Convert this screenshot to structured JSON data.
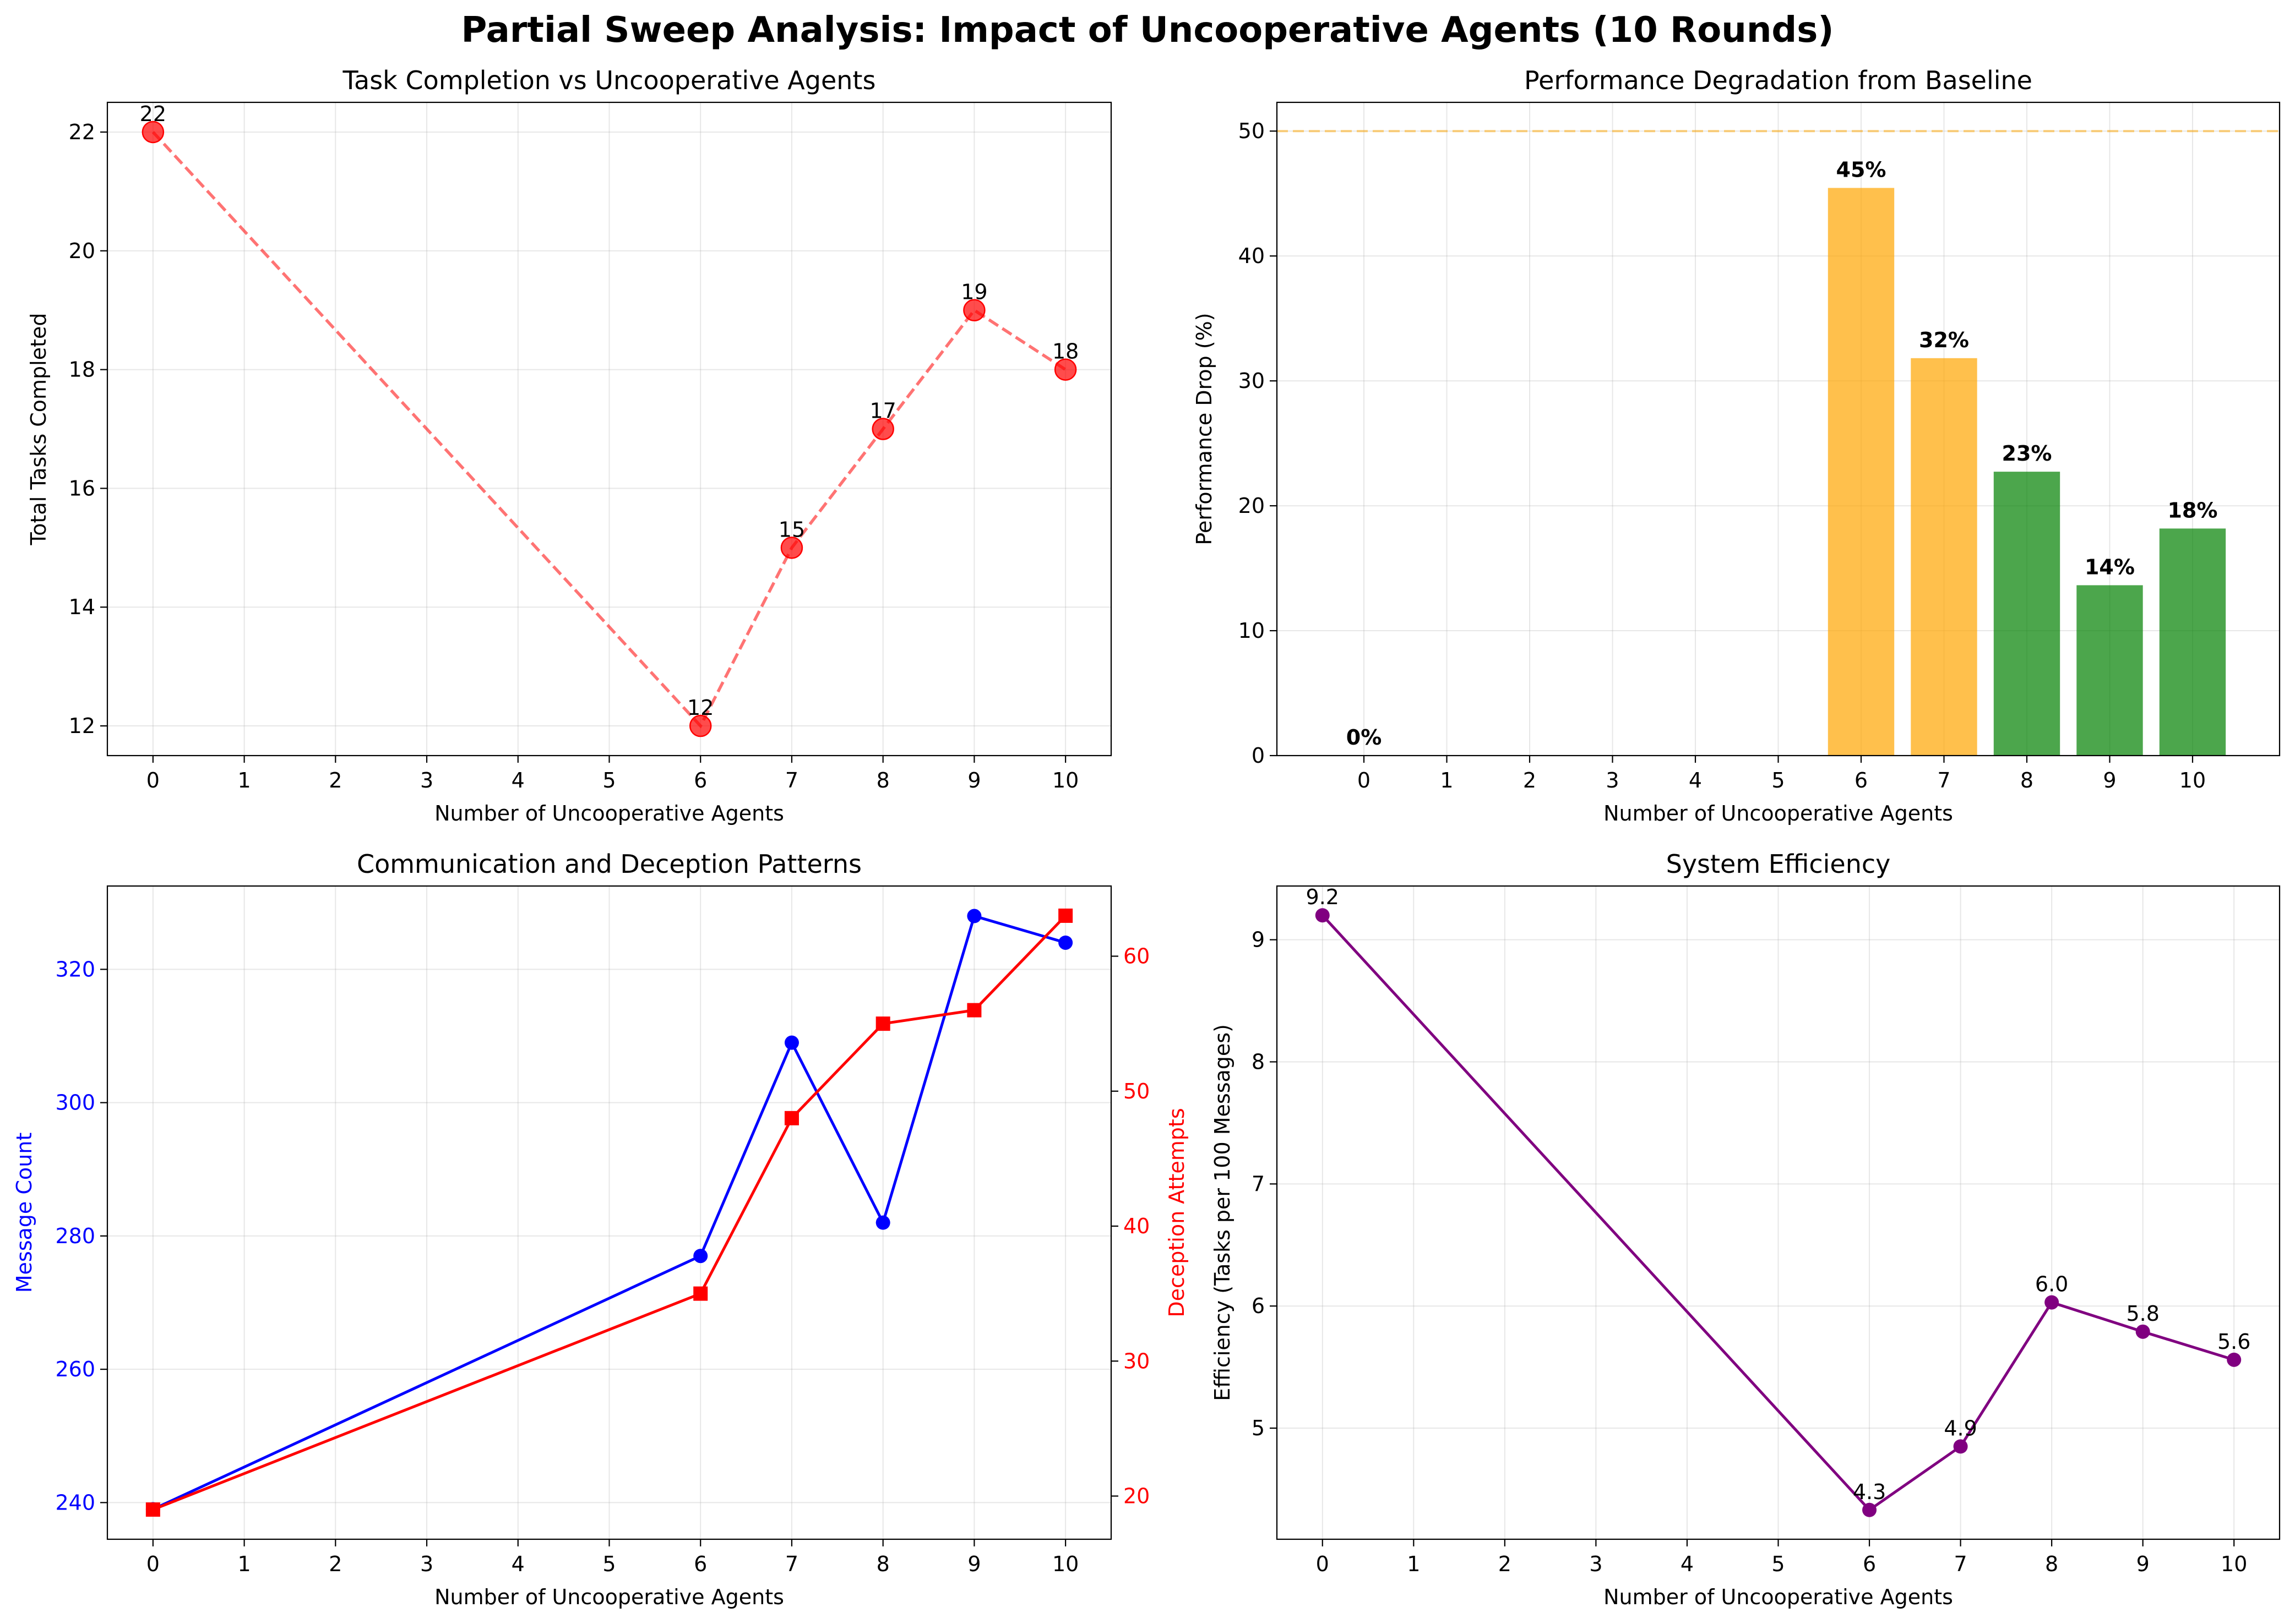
{
  "figure": {
    "suptitle": "Partial Sweep Analysis: Impact of Uncooperative Agents (10 Rounds)"
  },
  "chart_data": [
    {
      "id": "tasks",
      "type": "line",
      "title": "Task Completion vs Uncooperative Agents",
      "xlabel": "Number of Uncooperative Agents",
      "ylabel": "Total Tasks Completed",
      "xlim": [
        -0.5,
        10.5
      ],
      "ylim": [
        11.5,
        22.5
      ],
      "xticks": [
        0,
        1,
        2,
        3,
        4,
        5,
        6,
        7,
        8,
        9,
        10
      ],
      "yticks": [
        12,
        14,
        16,
        18,
        20,
        22
      ],
      "grid": true,
      "x": [
        0,
        6,
        7,
        8,
        9,
        10
      ],
      "series": [
        {
          "values": [
            22,
            12,
            15,
            17,
            19,
            18
          ],
          "color": "#ff0000",
          "line_style": "dashed",
          "marker": "circle"
        }
      ],
      "data_labels": [
        "22",
        "12",
        "15",
        "17",
        "19",
        "18"
      ]
    },
    {
      "id": "degradation",
      "type": "bar",
      "title": "Performance Degradation from Baseline",
      "xlabel": "Number of Uncooperative Agents",
      "ylabel": "Performance Drop (%)",
      "xlim": [
        -1.05,
        11.05
      ],
      "ylim": [
        0,
        52.3
      ],
      "xticks": [
        0,
        1,
        2,
        3,
        4,
        5,
        6,
        7,
        8,
        9,
        10
      ],
      "yticks": [
        0,
        10,
        20,
        30,
        40,
        50
      ],
      "grid": true,
      "categories": [
        0,
        1,
        2,
        3,
        4,
        5,
        6,
        7,
        8,
        9,
        10
      ],
      "values": [
        0,
        0,
        0,
        0,
        0,
        0,
        45.45,
        31.82,
        22.73,
        13.64,
        18.18
      ],
      "bar_colors": [
        "#ffa500",
        "#ffa500",
        "#ffa500",
        "#ffa500",
        "#ffa500",
        "#ffa500",
        "#ffa500",
        "#ffa500",
        "#008000",
        "#008000",
        "#008000"
      ],
      "data_labels": [
        "0%",
        "",
        "",
        "",
        "",
        "",
        "45%",
        "32%",
        "23%",
        "14%",
        "18%"
      ],
      "reference_line": {
        "y": 50,
        "color": "#ffa500",
        "style": "dashed"
      }
    },
    {
      "id": "comm",
      "type": "line",
      "title": "Communication and Deception Patterns",
      "xlabel": "Number of Uncooperative Agents",
      "ylabel": "Message Count",
      "y2label": "Deception Attempts",
      "xlim": [
        -0.5,
        10.5
      ],
      "ylim": [
        234.5,
        332.5
      ],
      "y2lim": [
        16.8,
        65.2
      ],
      "xticks": [
        0,
        1,
        2,
        3,
        4,
        5,
        6,
        7,
        8,
        9,
        10
      ],
      "yticks": [
        240,
        260,
        280,
        300,
        320
      ],
      "y2ticks": [
        20,
        30,
        40,
        50,
        60
      ],
      "grid": true,
      "x": [
        0,
        6,
        7,
        8,
        9,
        10
      ],
      "series": [
        {
          "axis": "left",
          "values": [
            239,
            277,
            309,
            282,
            328,
            324
          ],
          "color": "#0000ff",
          "marker": "circle"
        },
        {
          "axis": "right",
          "values": [
            19,
            35,
            48,
            55,
            56,
            63
          ],
          "color": "#ff0000",
          "marker": "square"
        }
      ]
    },
    {
      "id": "efficiency",
      "type": "line",
      "title": "System Efficiency",
      "xlabel": "Number of Uncooperative Agents",
      "ylabel": "Efficiency (Tasks per 100 Messages)",
      "xlim": [
        -0.5,
        10.5
      ],
      "ylim": [
        4.09,
        9.44
      ],
      "xticks": [
        0,
        1,
        2,
        3,
        4,
        5,
        6,
        7,
        8,
        9,
        10
      ],
      "yticks": [
        5,
        6,
        7,
        8,
        9
      ],
      "grid": true,
      "x": [
        0,
        6,
        7,
        8,
        9,
        10
      ],
      "series": [
        {
          "values": [
            9.2,
            4.33,
            4.85,
            6.03,
            5.79,
            5.56
          ],
          "color": "#800080",
          "marker": "circle"
        }
      ],
      "data_labels": [
        "9.2",
        "4.3",
        "4.9",
        "6.0",
        "5.8",
        "5.6"
      ]
    }
  ]
}
